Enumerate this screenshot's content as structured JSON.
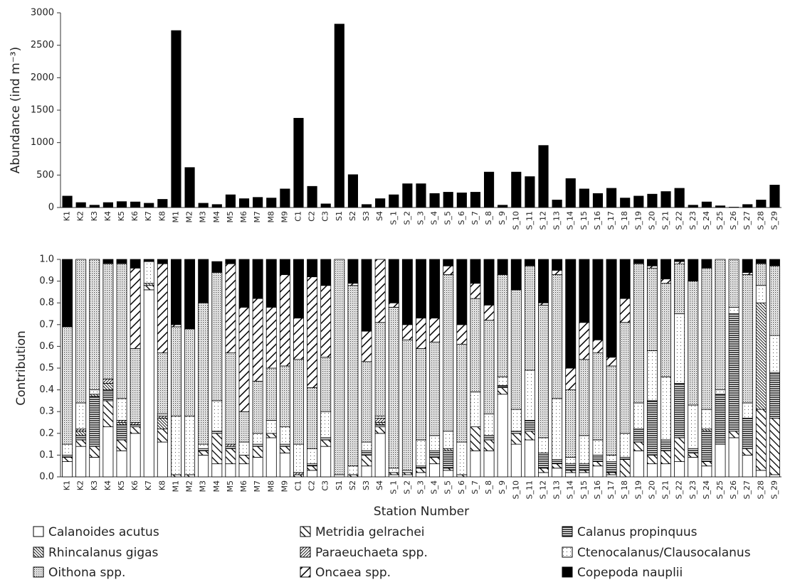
{
  "chart_data": [
    {
      "type": "bar",
      "ylabel": "Abundance (ind m⁻³)",
      "color": "#000000",
      "categories": [
        "K1",
        "K2",
        "K3",
        "K4",
        "K5",
        "K6",
        "K7",
        "K8",
        "M1",
        "M2",
        "M3",
        "M4",
        "M5",
        "M6",
        "M7",
        "M8",
        "M9",
        "C1",
        "C2",
        "C3",
        "S1",
        "S2",
        "S3",
        "S4",
        "S_1",
        "S_2",
        "S_3",
        "S_4",
        "S_5",
        "S_6",
        "S_7",
        "S_8",
        "S_9",
        "S_10",
        "S_11",
        "S_12",
        "S_13",
        "S_14",
        "S_15",
        "S_16",
        "S_17",
        "S_18",
        "S_19",
        "S_20",
        "S_21",
        "S_22",
        "S_23",
        "S_24",
        "S_25",
        "S_26",
        "S_27",
        "S_28",
        "S_29"
      ],
      "values": [
        180,
        80,
        40,
        80,
        95,
        90,
        70,
        130,
        2730,
        620,
        70,
        50,
        200,
        140,
        160,
        150,
        290,
        1380,
        330,
        60,
        2830,
        510,
        50,
        140,
        200,
        370,
        370,
        220,
        240,
        230,
        240,
        550,
        40,
        550,
        480,
        960,
        120,
        450,
        290,
        220,
        300,
        150,
        180,
        210,
        250,
        300,
        40,
        90,
        30,
        10,
        50,
        120,
        350
      ],
      "ylim": [
        0,
        3000
      ],
      "yticks": [
        0,
        500,
        1000,
        1500,
        2000,
        2500,
        3000
      ]
    },
    {
      "type": "bar",
      "stacked": true,
      "xlabel": "Station Number",
      "ylabel": "Contribution",
      "legend": "bottom",
      "categories": [
        "K1",
        "K2",
        "K3",
        "K4",
        "K5",
        "K6",
        "K7",
        "K8",
        "M1",
        "M2",
        "M3",
        "M4",
        "M5",
        "M6",
        "M7",
        "M8",
        "M9",
        "C1",
        "C2",
        "C3",
        "S1",
        "S2",
        "S3",
        "S4",
        "S_1",
        "S_2",
        "S_3",
        "S_4",
        "S_5",
        "S_6",
        "S_7",
        "S_8",
        "S_9",
        "S_10",
        "S_11",
        "S_12",
        "S_13",
        "S_14",
        "S_15",
        "S_16",
        "S_17",
        "S_18",
        "S_19",
        "S_20",
        "S_21",
        "S_22",
        "S_23",
        "S_24",
        "S_25",
        "S_26",
        "S_27",
        "S_28",
        "S_29"
      ],
      "ylim": [
        0,
        1
      ],
      "yticks": [
        {
          "value": 0,
          "label": "0.0"
        },
        0.1,
        0.2,
        0.3,
        0.4,
        0.5,
        0.6,
        0.7,
        0.8,
        0.9,
        {
          "value": 1,
          "label": "1.0"
        }
      ],
      "series": [
        {
          "name": "Calanoides acutus",
          "color": "#000000",
          "pattern": "plain",
          "values": [
            0.07,
            0.14,
            0.09,
            0.23,
            0.12,
            0.2,
            0.86,
            0.16,
            0,
            0,
            0.1,
            0.06,
            0.06,
            0.06,
            0.09,
            0.18,
            0.11,
            0,
            0.03,
            0.14,
            0,
            0,
            0.05,
            0.2,
            0.01,
            0.01,
            0.02,
            0.06,
            0.03,
            0,
            0.12,
            0.12,
            0.38,
            0.15,
            0.17,
            0.02,
            0.04,
            0.02,
            0.02,
            0.05,
            0.01,
            0,
            0.12,
            0.06,
            0.06,
            0.07,
            0.09,
            0.05,
            0.15,
            0.18,
            0.1,
            0.03,
            0.01
          ]
        },
        {
          "name": "Metridia gelrachei",
          "color": "#000000",
          "pattern": "hatch",
          "values": [
            0.02,
            0.03,
            0.05,
            0.12,
            0.05,
            0.03,
            0.02,
            0.06,
            0.01,
            0.01,
            0.02,
            0.14,
            0.07,
            0.04,
            0.05,
            0.02,
            0.03,
            0.01,
            0.02,
            0.03,
            0,
            0.01,
            0.05,
            0.03,
            0.01,
            0.01,
            0.02,
            0.03,
            0.01,
            0.01,
            0.11,
            0.05,
            0.03,
            0.05,
            0.04,
            0.02,
            0.02,
            0.01,
            0.01,
            0.02,
            0.01,
            0.08,
            0.04,
            0.04,
            0.06,
            0.11,
            0.02,
            0.02,
            0,
            0.03,
            0.03,
            0.28,
            0.26
          ]
        },
        {
          "name": "Calanus propinquus",
          "color": "#000000",
          "pattern": "horizontal",
          "values": [
            0.01,
            0.02,
            0.23,
            0.05,
            0.07,
            0.01,
            0,
            0,
            0,
            0,
            0.01,
            0.01,
            0.01,
            0,
            0.01,
            0,
            0.01,
            0,
            0.01,
            0.01,
            0,
            0,
            0.02,
            0.01,
            0,
            0,
            0.01,
            0.03,
            0.08,
            0,
            0,
            0.02,
            0.01,
            0.01,
            0.05,
            0.07,
            0.02,
            0.03,
            0.03,
            0.03,
            0.05,
            0.01,
            0.06,
            0.25,
            0.05,
            0.25,
            0.02,
            0.14,
            0.23,
            0.54,
            0.14,
            0,
            0.21
          ]
        },
        {
          "name": "Rhincalanus gigas",
          "color": "#000000",
          "pattern": "hatch-dense",
          "values": [
            0,
            0.02,
            0.01,
            0.03,
            0.01,
            0,
            0.01,
            0.05,
            0,
            0,
            0,
            0,
            0,
            0,
            0,
            0,
            0,
            0,
            0,
            0,
            0,
            0,
            0,
            0.01,
            0,
            0,
            0,
            0,
            0.01,
            0,
            0,
            0,
            0,
            0,
            0,
            0,
            0,
            0,
            0,
            0,
            0,
            0,
            0,
            0,
            0,
            0,
            0,
            0.01,
            0,
            0,
            0,
            0.49,
            0
          ]
        },
        {
          "name": "Paraeuchaeta spp.",
          "color": "#000000",
          "pattern": "backhatch-dense",
          "values": [
            0,
            0.01,
            0,
            0.02,
            0.01,
            0.01,
            0,
            0.01,
            0,
            0,
            0,
            0,
            0.01,
            0,
            0,
            0,
            0,
            0.01,
            0,
            0,
            0,
            0,
            0,
            0.02,
            0,
            0,
            0,
            0,
            0,
            0,
            0,
            0,
            0,
            0,
            0,
            0,
            0,
            0,
            0,
            0,
            0,
            0,
            0,
            0,
            0,
            0,
            0,
            0,
            0,
            0,
            0,
            0,
            0
          ]
        },
        {
          "name": "Ctenocalanus/Clausocalanus",
          "color": "#000000",
          "pattern": "dots-sparse",
          "values": [
            0.05,
            0.12,
            0.02,
            0,
            0.1,
            0,
            0.1,
            0.01,
            0.27,
            0.27,
            0.02,
            0.14,
            0,
            0.06,
            0.05,
            0.06,
            0.08,
            0.13,
            0.07,
            0.12,
            0.01,
            0.04,
            0.04,
            0.01,
            0.02,
            0.01,
            0.12,
            0.07,
            0.08,
            0.15,
            0.16,
            0.1,
            0.04,
            0.1,
            0.23,
            0.07,
            0.28,
            0.03,
            0.13,
            0.07,
            0.03,
            0.11,
            0.12,
            0.23,
            0.29,
            0.32,
            0.2,
            0.09,
            0.02,
            0.03,
            0.07,
            0.08,
            0.17
          ]
        },
        {
          "name": "Oithona spp.",
          "color": "#000000",
          "pattern": "dots-dense",
          "values": [
            0.54,
            0.66,
            0.6,
            0.53,
            0.62,
            0.34,
            0,
            0.28,
            0.41,
            0.4,
            0.65,
            0.59,
            0.42,
            0.14,
            0.24,
            0.24,
            0.28,
            0.39,
            0.28,
            0.25,
            0.99,
            0.83,
            0.37,
            0.43,
            0.74,
            0.6,
            0.42,
            0.43,
            0.72,
            0.45,
            0.43,
            0.43,
            0.47,
            0.55,
            0.48,
            0.61,
            0.57,
            0.31,
            0.35,
            0.4,
            0.41,
            0.51,
            0.64,
            0.38,
            0.43,
            0.23,
            0.57,
            0.65,
            0.6,
            0.22,
            0.59,
            0.1,
            0.32
          ]
        },
        {
          "name": "Oncaea spp.",
          "color": "#000000",
          "pattern": "backhatch",
          "values": [
            0,
            0,
            0,
            0,
            0,
            0.37,
            0,
            0.41,
            0.01,
            0,
            0,
            0,
            0.41,
            0.48,
            0.38,
            0.28,
            0.42,
            0.19,
            0.51,
            0.33,
            0,
            0.01,
            0.14,
            0.29,
            0.02,
            0.07,
            0.14,
            0.11,
            0.04,
            0.09,
            0.07,
            0.07,
            0,
            0,
            0,
            0.01,
            0.02,
            0.1,
            0.17,
            0.06,
            0.04,
            0.11,
            0,
            0.01,
            0.02,
            0.01,
            0,
            0,
            0,
            0,
            0.01,
            0,
            0
          ]
        },
        {
          "name": "Copepoda nauplii",
          "color": "#000000",
          "pattern": "solid",
          "values": [
            0.31,
            0,
            0,
            0.02,
            0.02,
            0.04,
            0.01,
            0.02,
            0.3,
            0.32,
            0.2,
            0.05,
            0.02,
            0.22,
            0.18,
            0.22,
            0.07,
            0.27,
            0.08,
            0.12,
            0,
            0.11,
            0.33,
            0,
            0.2,
            0.3,
            0.27,
            0.27,
            0.03,
            0.3,
            0.11,
            0.21,
            0.07,
            0.14,
            0.03,
            0.2,
            0.05,
            0.5,
            0.29,
            0.37,
            0.45,
            0.18,
            0.02,
            0.03,
            0.09,
            0.01,
            0.1,
            0.04,
            0,
            0,
            0.06,
            0.02,
            0.03
          ]
        }
      ]
    }
  ]
}
